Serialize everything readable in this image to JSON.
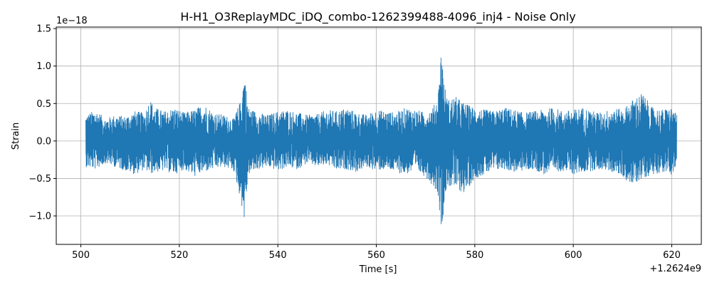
{
  "chart_data": {
    "type": "line",
    "title": "H-H1_O3ReplayMDC_iDQ_combo-1262399488-4096_inj4 - Noise Only",
    "xlabel": "Time [s]",
    "ylabel": "Strain",
    "x_offset_label": "+1.2624e9",
    "y_scale_label": "1e−18",
    "xlim": [
      495.0,
      626.0
    ],
    "ylim": [
      -1.38,
      1.52
    ],
    "x_ticks": [
      500,
      520,
      540,
      560,
      580,
      600,
      620
    ],
    "x_tick_labels": [
      "500",
      "520",
      "540",
      "560",
      "580",
      "600",
      "620"
    ],
    "y_ticks": [
      -1.0,
      -0.5,
      0.0,
      0.5,
      1.0,
      1.5
    ],
    "y_tick_labels": [
      "−1.0",
      "−0.5",
      "0.0",
      "0.5",
      "1.0",
      "1.5"
    ],
    "grid": true,
    "series": [
      {
        "color": "#1f77b4",
        "envelope": {
          "x": [
            501.0,
            503,
            505,
            507,
            509,
            511,
            513,
            514,
            515,
            517,
            519,
            521,
            523,
            525,
            527,
            529,
            531,
            532.5,
            533.2,
            534,
            536,
            538,
            540,
            542,
            544,
            546,
            548,
            550,
            552,
            554,
            556,
            558,
            560,
            562,
            564,
            566,
            568,
            570,
            571.5,
            572.5,
            573.3,
            573.7,
            574.5,
            576,
            578,
            580,
            582,
            584,
            586,
            588,
            590,
            592,
            594,
            596,
            598,
            600,
            602,
            604,
            606,
            608,
            610,
            612,
            614,
            616,
            618,
            620,
            621.0
          ],
          "upper": [
            0.35,
            0.42,
            0.3,
            0.35,
            0.33,
            0.4,
            0.38,
            0.57,
            0.45,
            0.4,
            0.45,
            0.38,
            0.42,
            0.5,
            0.38,
            0.35,
            0.3,
            0.55,
            0.95,
            0.45,
            0.38,
            0.35,
            0.4,
            0.42,
            0.38,
            0.35,
            0.36,
            0.42,
            0.4,
            0.45,
            0.38,
            0.35,
            0.42,
            0.4,
            0.38,
            0.45,
            0.42,
            0.38,
            0.45,
            0.6,
            1.38,
            0.8,
            0.55,
            0.6,
            0.5,
            0.45,
            0.42,
            0.4,
            0.45,
            0.42,
            0.38,
            0.4,
            0.42,
            0.45,
            0.4,
            0.42,
            0.45,
            0.4,
            0.38,
            0.45,
            0.42,
            0.55,
            0.65,
            0.45,
            0.42,
            0.45,
            0.35
          ],
          "lower": [
            -0.35,
            -0.38,
            -0.3,
            -0.35,
            -0.4,
            -0.45,
            -0.38,
            -0.45,
            -0.42,
            -0.4,
            -0.45,
            -0.38,
            -0.48,
            -0.42,
            -0.38,
            -0.35,
            -0.4,
            -0.8,
            -1.08,
            -0.45,
            -0.38,
            -0.35,
            -0.4,
            -0.35,
            -0.38,
            -0.3,
            -0.35,
            -0.32,
            -0.4,
            -0.38,
            -0.42,
            -0.35,
            -0.4,
            -0.38,
            -0.42,
            -0.45,
            -0.4,
            -0.48,
            -0.6,
            -0.7,
            -1.26,
            -0.85,
            -0.6,
            -0.65,
            -0.7,
            -0.5,
            -0.45,
            -0.4,
            -0.38,
            -0.42,
            -0.4,
            -0.38,
            -0.45,
            -0.42,
            -0.4,
            -0.45,
            -0.42,
            -0.4,
            -0.38,
            -0.42,
            -0.48,
            -0.6,
            -0.5,
            -0.45,
            -0.42,
            -0.45,
            -0.35
          ]
        }
      }
    ]
  }
}
